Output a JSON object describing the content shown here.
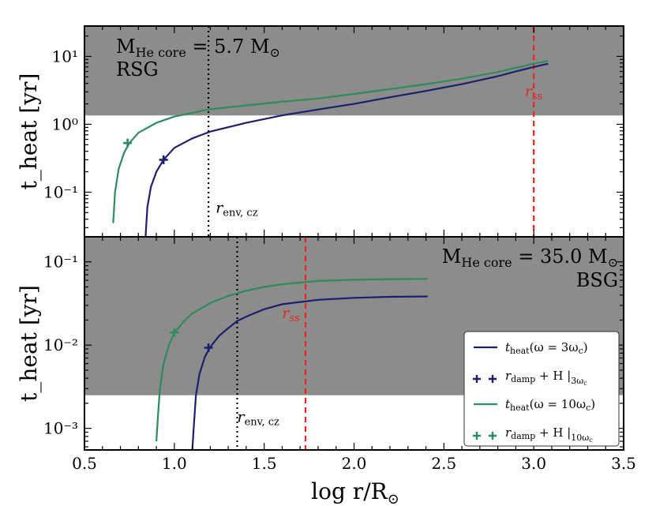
{
  "figure": {
    "xlabel": "log r/R",
    "xlabel_sub": "⊙",
    "xticks": [
      "0.5",
      "1.0",
      "1.5",
      "2.0",
      "2.5",
      "3.0",
      "3.5"
    ],
    "colors": {
      "dark": "#1c1f6e",
      "green": "#2e8b60",
      "red": "#e8251f",
      "shade": "#8c8c8c"
    }
  },
  "chart_data": [
    {
      "type": "line",
      "panel": "top",
      "ylabel": "t_heat [yr]",
      "yscale": "log",
      "xlim": [
        0.5,
        3.5
      ],
      "ylim": [
        0.022,
        28
      ],
      "yticks": [
        {
          "value": 0.1,
          "label": "10⁻¹"
        },
        {
          "value": 1,
          "label": "10⁰"
        },
        {
          "value": 10,
          "label": "10¹"
        }
      ],
      "annotations": {
        "mass": "M",
        "mass_sub": "He core",
        "mass_value": " = 5.7 M",
        "sun": "⊙",
        "stage": "RSG"
      },
      "shaded_above_y": 1.35,
      "vlines": [
        {
          "name": "r_env,cz",
          "x": 1.19,
          "style": "dotted",
          "label": "r",
          "label_sub": "env, cz",
          "label_x": 1.23,
          "label_y": 0.05
        },
        {
          "name": "r_ss",
          "x": 3.0,
          "style": "dashed",
          "label": "r",
          "label_sub": "ss",
          "label_x": 2.95,
          "label_y": 2.6
        }
      ],
      "series": [
        {
          "name": "t_heat(ω = 3ω_c)",
          "x": [
            0.84,
            0.85,
            0.87,
            0.9,
            0.94,
            1.0,
            1.1,
            1.2,
            1.4,
            1.6,
            1.8,
            2.0,
            2.2,
            2.4,
            2.6,
            2.8,
            2.9,
            3.0,
            3.08
          ],
          "y": [
            0.022,
            0.06,
            0.12,
            0.2,
            0.3,
            0.45,
            0.62,
            0.78,
            1.05,
            1.35,
            1.65,
            2.0,
            2.5,
            3.1,
            3.9,
            5.1,
            6.0,
            7.0,
            7.8
          ]
        },
        {
          "name": "t_heat(ω = 10ω_c)",
          "x": [
            0.66,
            0.67,
            0.69,
            0.72,
            0.75,
            0.8,
            0.9,
            1.0,
            1.19,
            1.4,
            1.6,
            1.8,
            2.0,
            2.2,
            2.4,
            2.6,
            2.8,
            2.9,
            3.0,
            3.08
          ],
          "y": [
            0.035,
            0.1,
            0.22,
            0.38,
            0.53,
            0.75,
            1.05,
            1.3,
            1.65,
            1.9,
            2.15,
            2.4,
            2.8,
            3.3,
            3.9,
            4.7,
            5.9,
            6.8,
            7.8,
            8.6
          ]
        }
      ],
      "markers": [
        {
          "series": "r_damp + H |3ω_c",
          "x": 0.94,
          "y": 0.3
        },
        {
          "series": "r_damp + H |10ω_c",
          "x": 0.74,
          "y": 0.53
        }
      ]
    },
    {
      "type": "line",
      "panel": "bottom",
      "ylabel": "t_heat [yr]",
      "yscale": "log",
      "xlim": [
        0.5,
        3.5
      ],
      "ylim": [
        0.00055,
        0.2
      ],
      "yticks": [
        {
          "value": 0.001,
          "label": "10⁻³"
        },
        {
          "value": 0.01,
          "label": "10⁻²"
        },
        {
          "value": 0.1,
          "label": "10⁻¹"
        }
      ],
      "annotations": {
        "mass": "M",
        "mass_sub": "He core",
        "mass_value": " = 35.0 M",
        "sun": "⊙",
        "stage": "BSG"
      },
      "shaded_above_y": 0.0025,
      "vlines": [
        {
          "name": "r_env,cz",
          "x": 1.35,
          "style": "dotted",
          "label": "r",
          "label_sub": "env, cz",
          "label_x": 1.35,
          "label_y": 0.0012
        },
        {
          "name": "r_ss",
          "x": 1.73,
          "style": "dashed",
          "label": "r",
          "label_sub": "ss",
          "label_x": 1.6,
          "label_y": 0.021
        }
      ],
      "series": [
        {
          "name": "t_heat(ω = 3ω_c)",
          "x": [
            1.1,
            1.11,
            1.12,
            1.14,
            1.17,
            1.2,
            1.25,
            1.3,
            1.35,
            1.4,
            1.5,
            1.6,
            1.8,
            2.0,
            2.2,
            2.41
          ],
          "y": [
            0.00055,
            0.0012,
            0.0025,
            0.0045,
            0.0072,
            0.0095,
            0.013,
            0.016,
            0.0195,
            0.022,
            0.027,
            0.031,
            0.035,
            0.037,
            0.038,
            0.0385
          ]
        },
        {
          "name": "t_heat(ω = 10ω_c)",
          "x": [
            0.9,
            0.91,
            0.92,
            0.94,
            0.97,
            1.0,
            1.05,
            1.1,
            1.2,
            1.3,
            1.4,
            1.5,
            1.6,
            1.8,
            2.0,
            2.2,
            2.41
          ],
          "y": [
            0.0007,
            0.0015,
            0.003,
            0.006,
            0.01,
            0.014,
            0.019,
            0.024,
            0.032,
            0.039,
            0.045,
            0.05,
            0.054,
            0.059,
            0.061,
            0.062,
            0.0625
          ]
        }
      ],
      "markers": [
        {
          "series": "r_damp + H |3ω_c",
          "x": 1.19,
          "y": 0.0093
        },
        {
          "series": "r_damp + H |10ω_c",
          "x": 1.0,
          "y": 0.0142
        }
      ],
      "legend": {
        "placement": "lower-right",
        "entries": [
          {
            "kind": "line",
            "color": "dark",
            "text": "t",
            "sub": "heat",
            "rest": "(ω = 3ω",
            "sub2": "c",
            "end": ")"
          },
          {
            "kind": "marker",
            "color": "dark",
            "text": "r",
            "sub": "damp",
            "rest": " + H |",
            "sub2": "3ω",
            "sub3": "c",
            "end": ""
          },
          {
            "kind": "line",
            "color": "green",
            "text": "t",
            "sub": "heat",
            "rest": "(ω = 10ω",
            "sub2": "c",
            "end": ")"
          },
          {
            "kind": "marker",
            "color": "green",
            "text": "r",
            "sub": "damp",
            "rest": " + H |",
            "sub2": "10ω",
            "sub3": "c",
            "end": ""
          }
        ]
      }
    }
  ]
}
